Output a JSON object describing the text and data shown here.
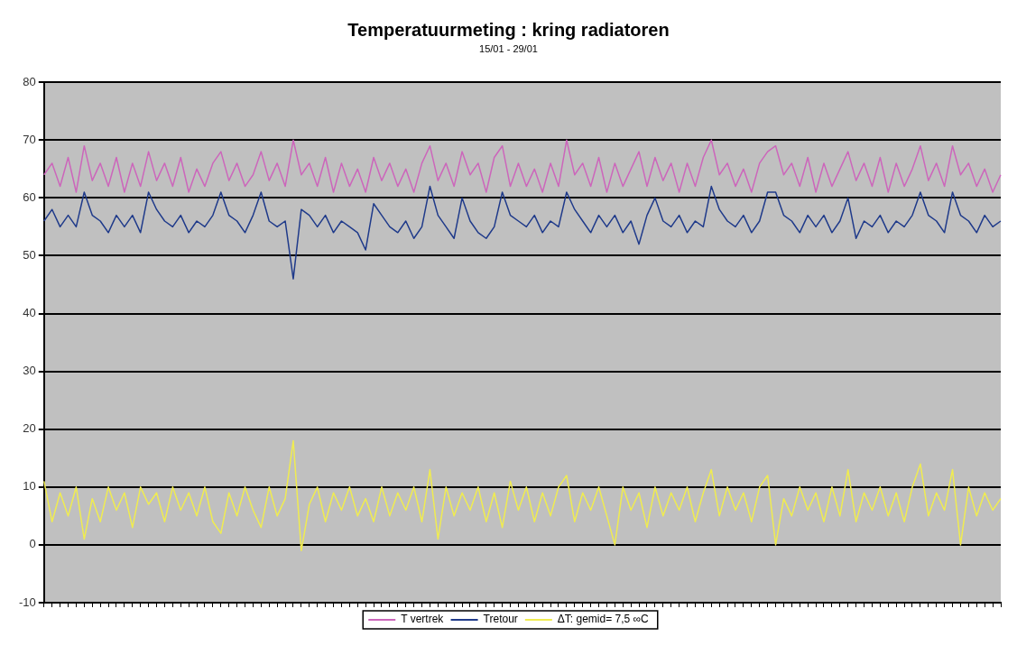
{
  "chart_data": {
    "type": "line",
    "title": "Temperatuurmeting : kring radiatoren",
    "subtitle": "15/01 - 29/01",
    "categories": [
      null,
      null,
      null,
      null,
      null,
      null,
      null,
      null,
      null,
      null,
      null,
      null,
      null,
      null,
      null,
      null,
      null,
      null,
      null,
      null,
      null,
      null,
      null,
      null,
      null,
      null,
      null,
      null,
      null,
      null,
      null,
      null,
      null,
      null,
      null,
      null,
      null,
      null,
      null,
      null,
      null,
      null,
      null,
      null,
      null,
      null,
      null,
      null,
      null,
      null,
      null,
      null,
      null,
      null,
      null,
      null,
      null,
      null,
      null,
      null,
      null,
      null,
      null,
      null,
      null,
      null,
      null,
      null,
      null,
      null,
      null,
      null,
      null,
      null,
      null,
      null,
      null,
      null,
      null,
      null,
      null,
      null,
      null,
      null,
      null,
      null,
      null,
      null,
      null,
      null,
      null,
      null,
      null,
      null,
      null,
      null,
      null,
      null,
      null,
      null,
      null,
      null,
      null,
      null,
      null,
      null,
      null,
      null,
      null,
      null,
      null,
      null,
      null,
      null,
      null,
      null,
      null,
      null,
      null,
      null
    ],
    "ylim": [
      -10,
      80
    ],
    "yticks": [
      -10,
      0,
      10,
      20,
      30,
      40,
      50,
      60,
      70,
      80
    ],
    "grid": "y",
    "legend": "bottom",
    "tick_labels": "y",
    "series": [
      {
        "name": "T vertrek",
        "color": "#cc66bb",
        "values": [
          64,
          66,
          62,
          67,
          61,
          69,
          63,
          66,
          62,
          67,
          61,
          66,
          62,
          68,
          63,
          66,
          62,
          67,
          61,
          65,
          62,
          66,
          68,
          63,
          66,
          62,
          64,
          68,
          63,
          66,
          62,
          70,
          64,
          66,
          62,
          67,
          61,
          66,
          62,
          65,
          61,
          67,
          63,
          66,
          62,
          65,
          61,
          66,
          69,
          63,
          66,
          62,
          68,
          64,
          66,
          61,
          67,
          69,
          62,
          66,
          62,
          65,
          61,
          66,
          62,
          70,
          64,
          66,
          62,
          67,
          61,
          66,
          62,
          65,
          68,
          62,
          67,
          63,
          66,
          61,
          66,
          62,
          67,
          70,
          64,
          66,
          62,
          65,
          61,
          66,
          68,
          69,
          64,
          66,
          62,
          67,
          61,
          66,
          62,
          65,
          68,
          63,
          66,
          62,
          67,
          61,
          66,
          62,
          65,
          69,
          63,
          66,
          62,
          69,
          64,
          66,
          62,
          65,
          61,
          64
        ]
      },
      {
        "name": "Tretour",
        "color": "#1f3a8a",
        "values": [
          56,
          58,
          55,
          57,
          55,
          61,
          57,
          56,
          54,
          57,
          55,
          57,
          54,
          61,
          58,
          56,
          55,
          57,
          54,
          56,
          55,
          57,
          61,
          57,
          56,
          54,
          57,
          61,
          56,
          55,
          56,
          46,
          58,
          57,
          55,
          57,
          54,
          56,
          55,
          54,
          51,
          59,
          57,
          55,
          54,
          56,
          53,
          55,
          62,
          57,
          55,
          53,
          60,
          56,
          54,
          53,
          55,
          61,
          57,
          56,
          55,
          57,
          54,
          56,
          55,
          61,
          58,
          56,
          54,
          57,
          55,
          57,
          54,
          56,
          52,
          57,
          60,
          56,
          55,
          57,
          54,
          56,
          55,
          62,
          58,
          56,
          55,
          57,
          54,
          56,
          61,
          61,
          57,
          56,
          54,
          57,
          55,
          57,
          54,
          56,
          60,
          53,
          56,
          55,
          57,
          54,
          56,
          55,
          57,
          61,
          57,
          56,
          54,
          61,
          57,
          56,
          54,
          57,
          55,
          56
        ]
      },
      {
        "name": "ΔT: gemid= 7,5 ∞C",
        "color": "#f0ec50",
        "values": [
          11,
          4,
          9,
          5,
          10,
          1,
          8,
          4,
          10,
          6,
          9,
          3,
          10,
          7,
          9,
          4,
          10,
          6,
          9,
          5,
          10,
          4,
          2,
          9,
          5,
          10,
          6,
          3,
          10,
          5,
          8,
          18,
          -1,
          7,
          10,
          4,
          9,
          6,
          10,
          5,
          8,
          4,
          10,
          5,
          9,
          6,
          10,
          4,
          13,
          1,
          10,
          5,
          9,
          6,
          10,
          4,
          9,
          3,
          11,
          6,
          10,
          4,
          9,
          5,
          10,
          12,
          4,
          9,
          6,
          10,
          5,
          0,
          10,
          6,
          9,
          3,
          10,
          5,
          9,
          6,
          10,
          4,
          9,
          13,
          5,
          10,
          6,
          9,
          4,
          10,
          12,
          0,
          8,
          5,
          10,
          6,
          9,
          4,
          10,
          5,
          13,
          4,
          9,
          6,
          10,
          5,
          9,
          4,
          10,
          14,
          5,
          9,
          6,
          13,
          0,
          10,
          5,
          9,
          6,
          8
        ]
      }
    ]
  }
}
